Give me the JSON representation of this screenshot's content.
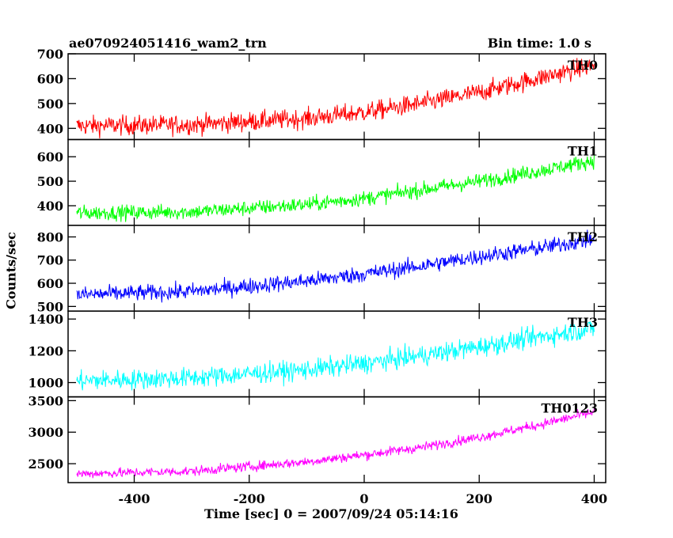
{
  "header": {
    "title": "ae070924051416_wam2_trn",
    "bin_time": "Bin time: 1.0 s"
  },
  "chart_data": {
    "type": "line",
    "title": "ae070924051416_wam2_trn",
    "subtitle": "Bin time: 1.0 s",
    "xlabel": "Time [sec] 0 = 2007/09/24 05:14:16",
    "ylabel": "Counts/sec",
    "xlim": [
      -515,
      420
    ],
    "x_ticks": [
      -400,
      -200,
      0,
      200,
      400
    ],
    "grid": false,
    "x_step": 1,
    "panels": [
      {
        "name": "TH0",
        "color": "#ff0000",
        "ylim": [
          355,
          700
        ],
        "y_ticks": [
          400,
          500,
          600,
          700
        ],
        "trend": {
          "x": [
            -500,
            -300,
            -100,
            0,
            100,
            200,
            300,
            400
          ],
          "y": [
            410,
            415,
            440,
            465,
            500,
            545,
            600,
            655
          ]
        },
        "noise": 28,
        "x_range": [
          -500,
          400
        ]
      },
      {
        "name": "TH1",
        "color": "#00ff00",
        "ylim": [
          320,
          670
        ],
        "y_ticks": [
          400,
          500,
          600
        ],
        "trend": {
          "x": [
            -500,
            -300,
            -100,
            0,
            100,
            200,
            300,
            400
          ],
          "y": [
            370,
            375,
            405,
            430,
            465,
            500,
            540,
            585
          ]
        },
        "noise": 22,
        "x_range": [
          -500,
          400
        ]
      },
      {
        "name": "TH2",
        "color": "#0000ff",
        "ylim": [
          480,
          850
        ],
        "y_ticks": [
          500,
          600,
          700,
          800
        ],
        "trend": {
          "x": [
            -500,
            -300,
            -100,
            0,
            100,
            200,
            300,
            400
          ],
          "y": [
            550,
            565,
            610,
            640,
            675,
            715,
            750,
            790
          ]
        },
        "noise": 25,
        "x_range": [
          -500,
          400
        ]
      },
      {
        "name": "TH3",
        "color": "#00ffff",
        "ylim": [
          910,
          1450
        ],
        "y_ticks": [
          1000,
          1200,
          1400
        ],
        "trend": {
          "x": [
            -500,
            -300,
            -100,
            0,
            100,
            200,
            300,
            400
          ],
          "y": [
            1010,
            1030,
            1080,
            1120,
            1170,
            1225,
            1285,
            1340
          ]
        },
        "noise": 45,
        "x_range": [
          -500,
          400
        ]
      },
      {
        "name": "TH0123",
        "color": "#ff00ff",
        "ylim": [
          2200,
          3560
        ],
        "y_ticks": [
          2500,
          3000,
          3500
        ],
        "trend": {
          "x": [
            -500,
            -300,
            -100,
            0,
            100,
            200,
            300,
            400
          ],
          "y": [
            2340,
            2380,
            2530,
            2640,
            2760,
            2920,
            3110,
            3320
          ]
        },
        "noise": 55,
        "x_range": [
          -500,
          400
        ]
      }
    ]
  }
}
